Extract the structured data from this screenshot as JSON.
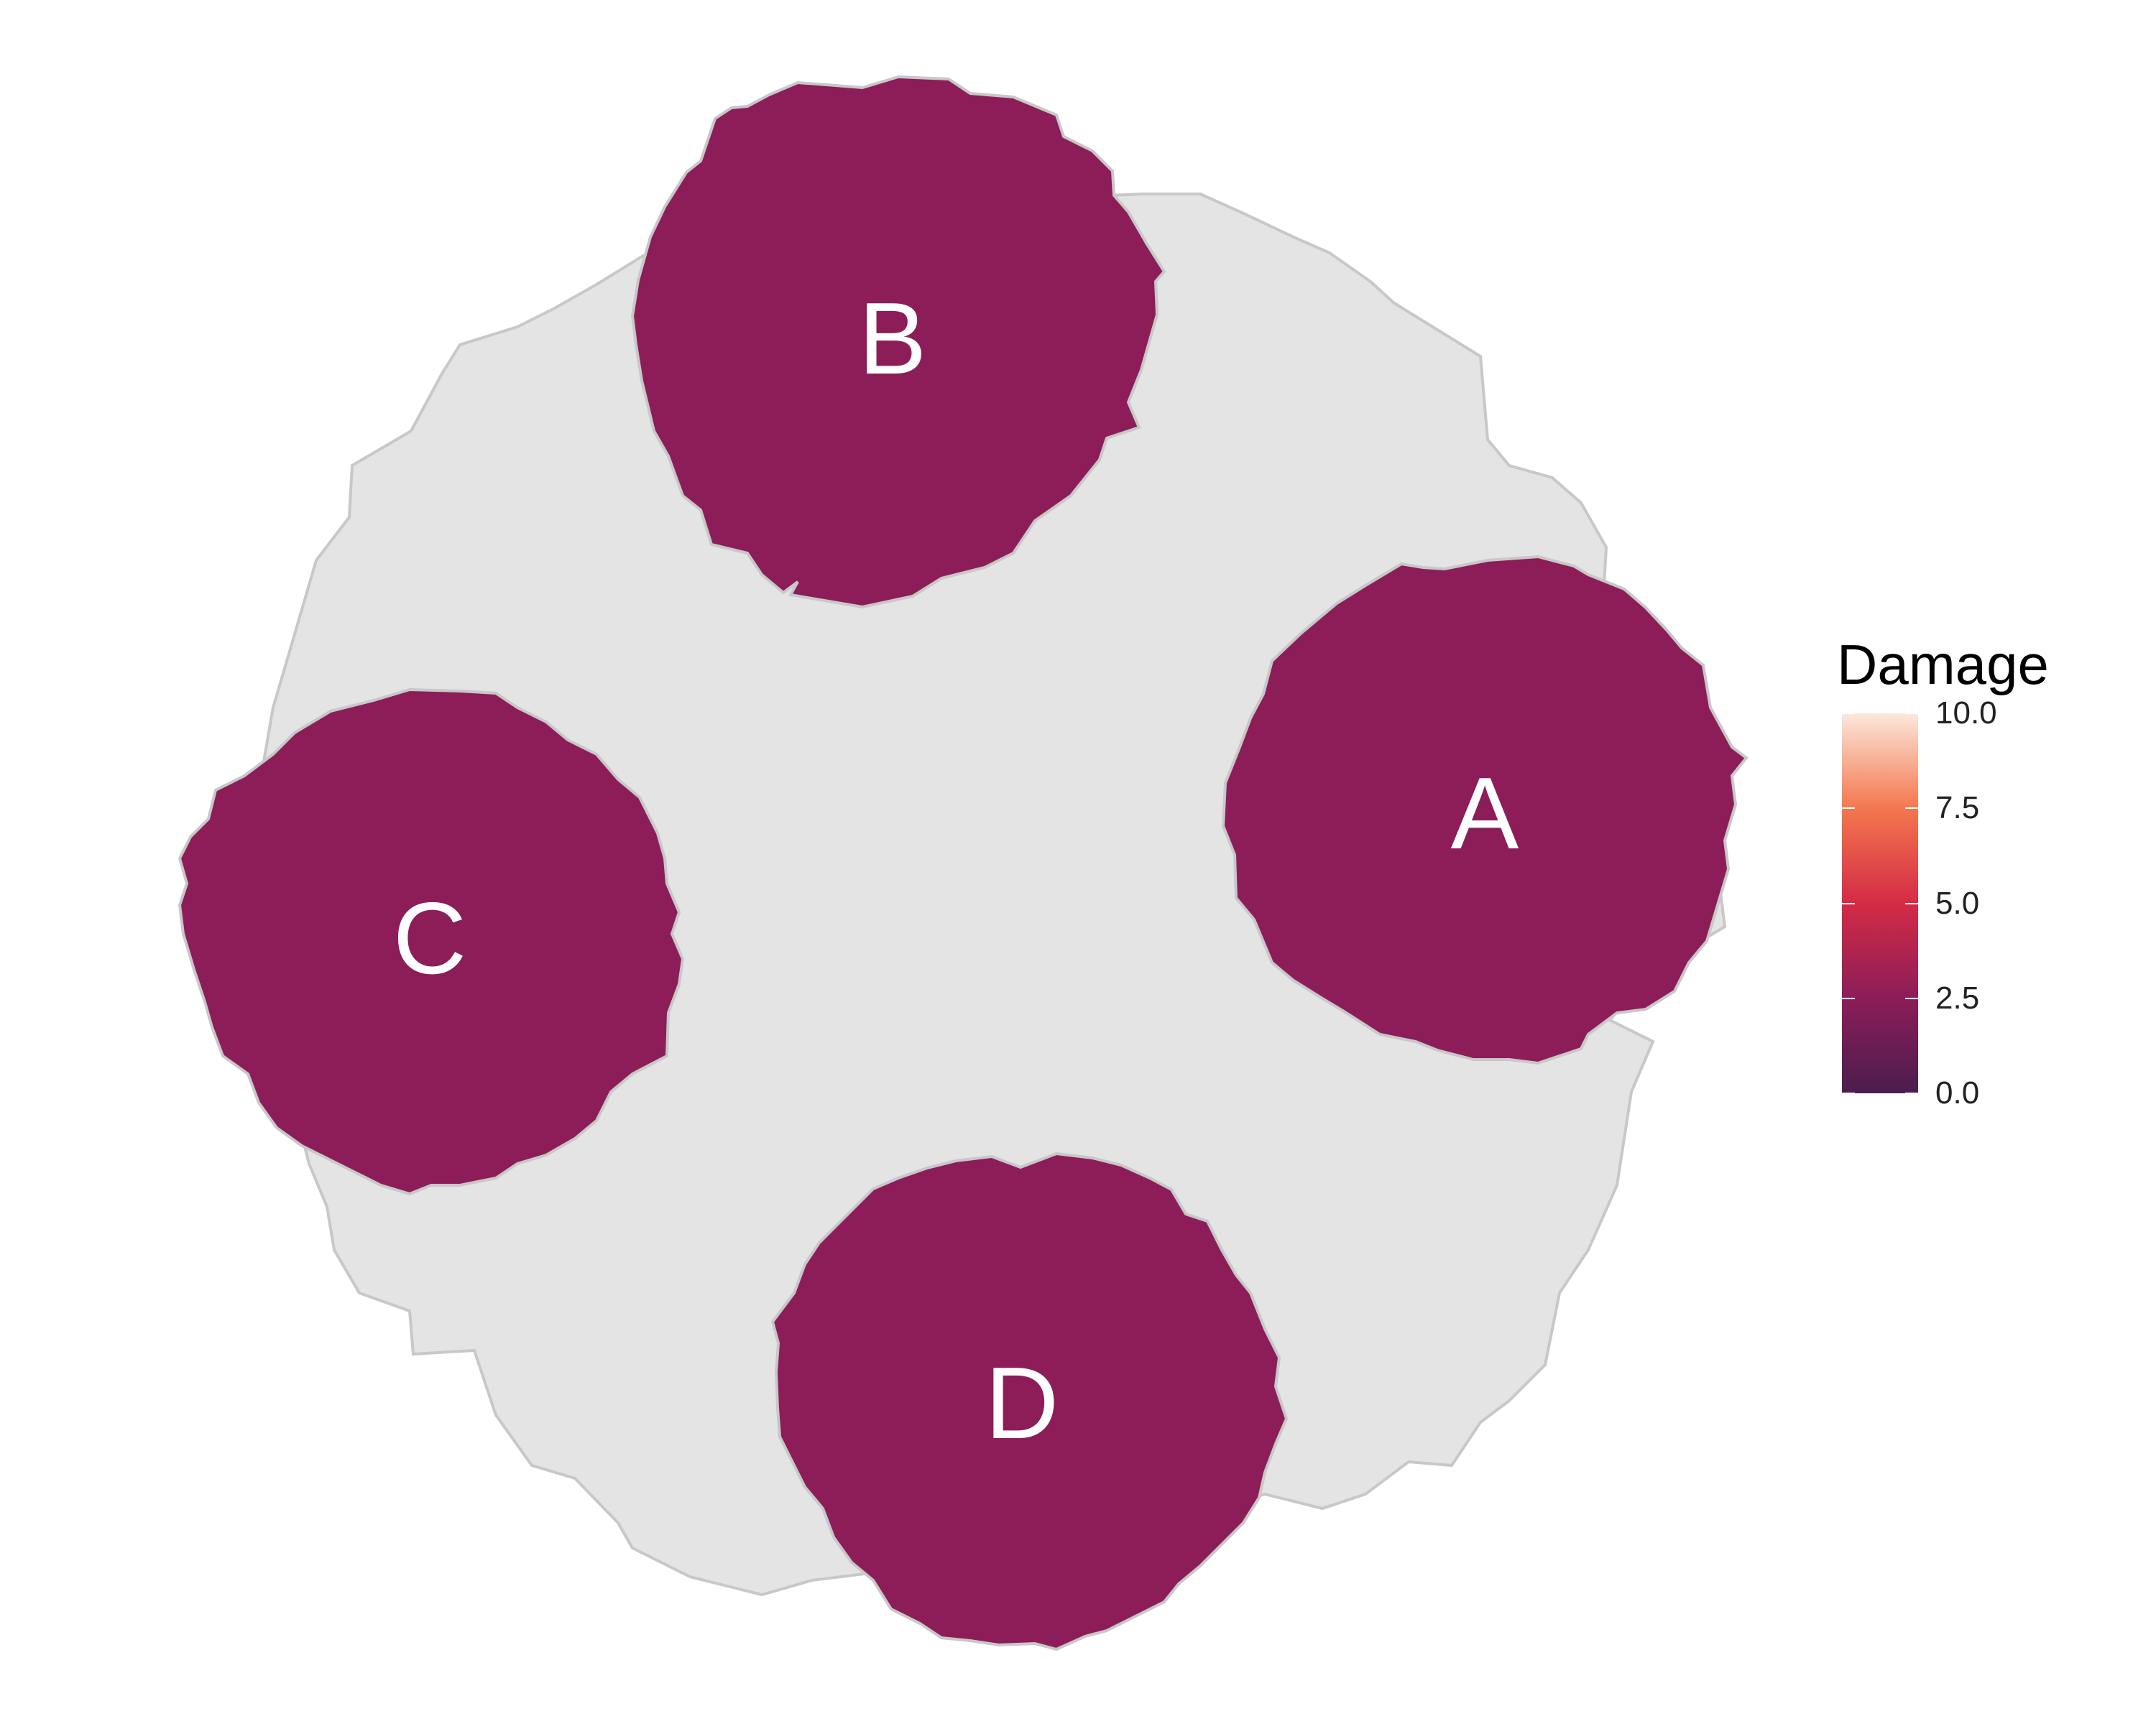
{
  "chart_data": {
    "type": "heatmap",
    "description_kind": "choropleth-like region map",
    "regions": [
      {
        "name": "",
        "value": null,
        "fill": "#e4e4e4",
        "role": "background-region"
      },
      {
        "name": "A",
        "value": 2.5,
        "fill": "#8c1d59"
      },
      {
        "name": "B",
        "value": 2.5,
        "fill": "#8c1d59"
      },
      {
        "name": "C",
        "value": 2.5,
        "fill": "#8c1d59"
      },
      {
        "name": "D",
        "value": 2.5,
        "fill": "#8c1d59"
      }
    ],
    "legend": {
      "title": "Damage",
      "placement": "right",
      "limits": [
        0,
        10
      ],
      "ticks": [
        "0.0",
        "2.5",
        "5.0",
        "7.5",
        "10.0"
      ],
      "palette": [
        "#4b1d4d",
        "#8c1d59",
        "#d42b45",
        "#f3774e",
        "#fbe8dc"
      ]
    },
    "outline_color": "#c8c8c8"
  }
}
